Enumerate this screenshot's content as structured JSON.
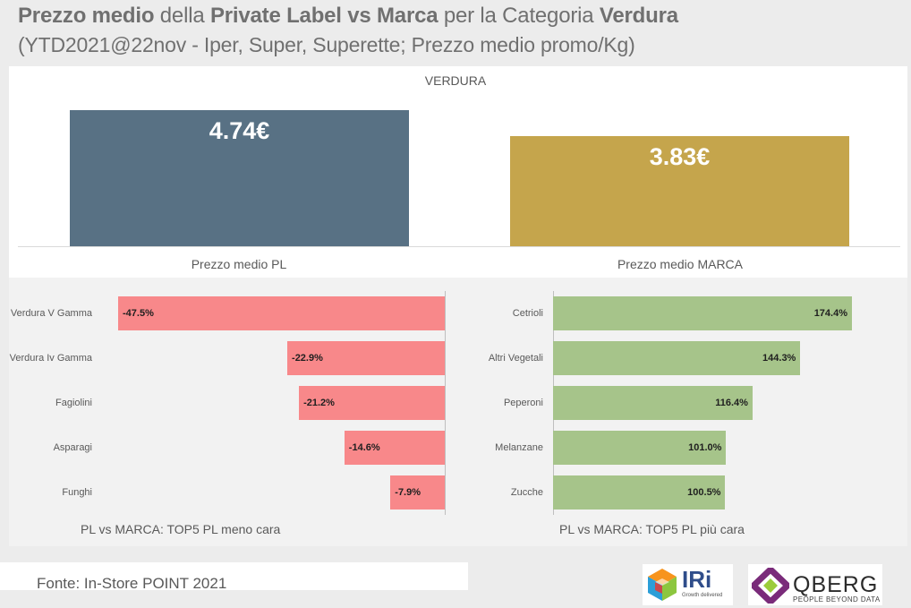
{
  "header": {
    "title_part1_bold": "Prezzo medio",
    "title_part2": " della ",
    "title_part3_bold": "Private Label vs Marca",
    "title_part4": " per la Categoria ",
    "title_part5_bold": "Verdura",
    "subtitle": "(YTD2021@22nov  - Iper, Super, Superette; Prezzo medio promo/Kg)"
  },
  "chart_data": [
    {
      "type": "bar",
      "title": "VERDURA",
      "categories": [
        "Prezzo medio PL",
        "Prezzo medio MARCA"
      ],
      "values": [
        4.74,
        3.83
      ],
      "labels": [
        "4.74€",
        "3.83€"
      ],
      "colors": [
        "#587184",
        "#c5a54c"
      ],
      "ylim": [
        0,
        5
      ]
    },
    {
      "type": "bar",
      "orientation": "horizontal",
      "title": "PL vs MARCA: TOP5 PL meno cara",
      "categories": [
        "Verdura V Gamma",
        "Verdura Iv Gamma",
        "Fagiolini",
        "Asparagi",
        "Funghi"
      ],
      "values": [
        -47.5,
        -22.9,
        -21.2,
        -14.6,
        -7.9
      ],
      "labels": [
        "-47.5%",
        "-22.9%",
        "-21.2%",
        "-14.6%",
        "-7.9%"
      ],
      "color": "#f8888a",
      "xlim": [
        -50,
        0
      ]
    },
    {
      "type": "bar",
      "orientation": "horizontal",
      "title": "PL vs MARCA: TOP5 PL più cara",
      "categories": [
        "Cetrioli",
        "Altri Vegetali",
        "Peperoni",
        "Melanzane",
        "Zucche"
      ],
      "values": [
        174.4,
        144.3,
        116.4,
        101.0,
        100.5
      ],
      "labels": [
        "174.4%",
        "144.3%",
        "116.4%",
        "101.0%",
        "100.5%"
      ],
      "color": "#a6c48a",
      "xlim": [
        0,
        180
      ]
    }
  ],
  "footer": {
    "source": "Fonte: In-Store POINT 2021",
    "logo_iri": "IRi",
    "logo_iri_tagline": "Growth delivered",
    "logo_qberg": "QBERG",
    "logo_qberg_tagline": "PEOPLE BEYOND DATA"
  }
}
